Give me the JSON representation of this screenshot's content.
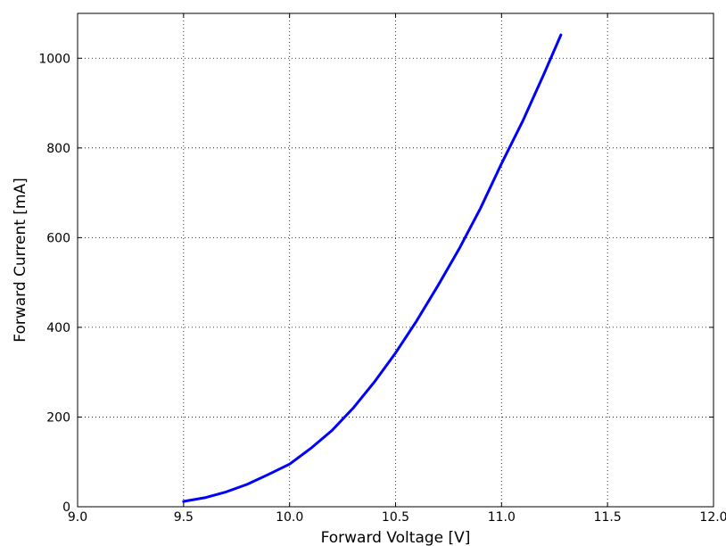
{
  "chart_data": {
    "type": "line",
    "title": "",
    "xlabel": "Forward Voltage [V]",
    "ylabel": "Forward Current [mA]",
    "xlim": [
      9.0,
      12.0
    ],
    "ylim": [
      0,
      1100
    ],
    "grid": true,
    "grid_style": "dotted",
    "legend": "none",
    "x_ticks": [
      9.0,
      9.5,
      10.0,
      10.5,
      11.0,
      11.5,
      12.0
    ],
    "x_tick_labels": [
      "9.0",
      "9.5",
      "10.0",
      "10.5",
      "11.0",
      "11.5",
      "12.0"
    ],
    "y_ticks": [
      0,
      200,
      400,
      600,
      800,
      1000
    ],
    "y_tick_labels": [
      "0",
      "200",
      "400",
      "600",
      "800",
      "1000"
    ],
    "series": [
      {
        "color": "#0000ff",
        "x": [
          9.5,
          9.6,
          9.7,
          9.8,
          9.9,
          10.0,
          10.1,
          10.2,
          10.3,
          10.4,
          10.5,
          10.6,
          10.7,
          10.8,
          10.9,
          11.0,
          11.1,
          11.2,
          11.28
        ],
        "y": [
          12,
          20,
          33,
          50,
          72,
          95,
          130,
          170,
          220,
          278,
          343,
          415,
          493,
          575,
          665,
          765,
          860,
          965,
          1052
        ]
      }
    ]
  }
}
